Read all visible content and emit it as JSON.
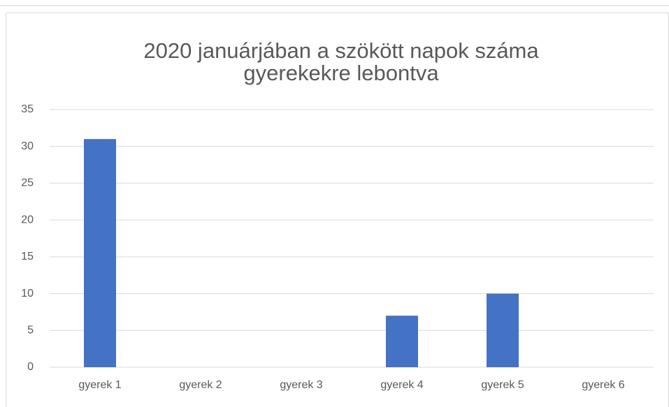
{
  "chart_data": {
    "type": "bar",
    "title": [
      "2020 januárjában a szökött napok száma",
      "gyerekekre lebontva"
    ],
    "categories": [
      "gyerek 1",
      "gyerek 2",
      "gyerek 3",
      "gyerek 4",
      "gyerek 5",
      "gyerek 6"
    ],
    "values": [
      31,
      0,
      0,
      7,
      10,
      0
    ],
    "color": "#4472c4",
    "ylim": [
      0,
      35
    ],
    "yticks": [
      0,
      5,
      10,
      15,
      20,
      25,
      30,
      35
    ],
    "grid": true
  }
}
